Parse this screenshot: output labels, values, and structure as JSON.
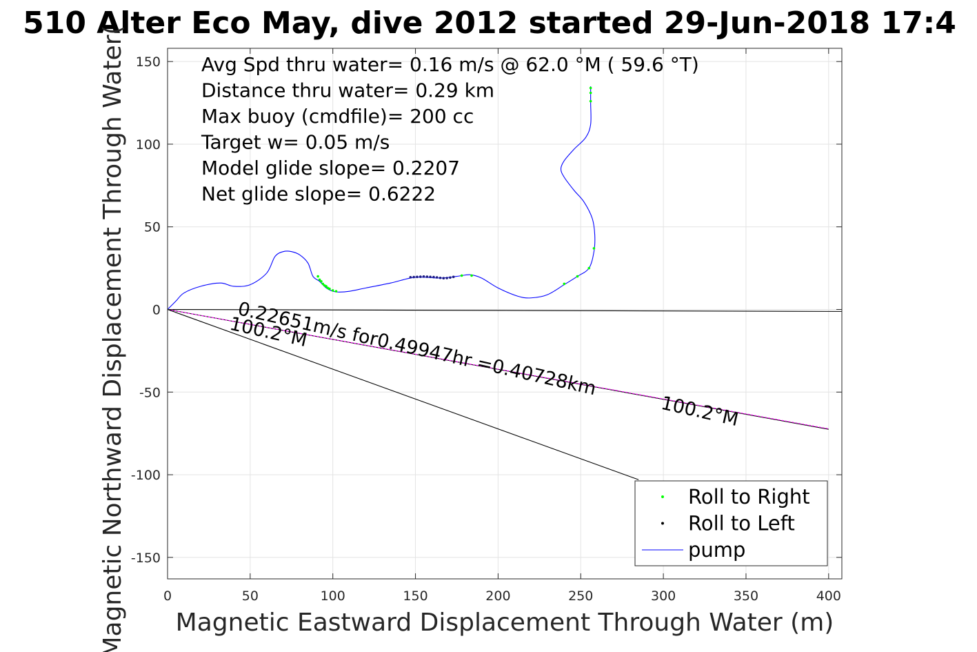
{
  "chart_data": {
    "type": "scatter",
    "title": "510 Alter Eco May, dive 2012 started 29-Jun-2018 17:4",
    "xlabel": "Magnetic Eastward Displacement Through Water (m)",
    "ylabel": "Magnetic Northward Displacement Through Water(",
    "xlim": [
      0,
      408
    ],
    "ylim": [
      -163,
      158
    ],
    "x_ticks": [
      0,
      50,
      100,
      150,
      200,
      250,
      300,
      350,
      400
    ],
    "y_ticks": [
      150,
      100,
      50,
      0,
      -50,
      -100,
      -150
    ],
    "grid": true,
    "legend": {
      "position": "bottom-right",
      "entries": [
        {
          "label": "Roll to Right",
          "color": "#00ff00",
          "marker": "dot"
        },
        {
          "label": "Roll to Left",
          "color": "#000000",
          "marker": "dot"
        },
        {
          "label": "pump",
          "color": "#0000ff",
          "marker": "line"
        }
      ]
    },
    "text_notes": [
      "Avg Spd thru water=  0.16 m/s @  62.0 °M ( 59.6 °T)",
      "Distance thru water=  0.29 km",
      "Max buoy (cmdfile)= 200 cc",
      "Target w= 0.05 m/s",
      "Model glide slope= 0.2207",
      "Net glide slope= 0.6222"
    ],
    "annotations": [
      {
        "text": "0.22651m/s for0.49947hr =0.40728km",
        "x": 42,
        "y": -3,
        "rotate": 12.7
      },
      {
        "text": "100.2°M",
        "x": 37,
        "y": -12,
        "rotate": 12.7
      },
      {
        "text": "100.2°M",
        "x": 298,
        "y": -60,
        "rotate": 12.7
      }
    ],
    "series": [
      {
        "name": "track",
        "color": "#0000ff",
        "style": "line",
        "x": [
          0,
          5,
          10,
          20,
          32,
          40,
          50,
          60,
          65,
          70,
          75,
          80,
          85,
          88,
          92,
          96,
          100,
          104,
          110,
          120,
          135,
          150,
          165,
          175,
          183,
          190,
          200,
          212,
          220,
          230,
          240,
          248,
          255,
          258,
          258.5,
          257,
          252,
          246,
          240,
          238,
          240,
          246,
          253,
          256,
          256,
          256
        ],
        "y": [
          0,
          5,
          10,
          14,
          16,
          14,
          15,
          22,
          32,
          35,
          35,
          33,
          28,
          20,
          17,
          13,
          11,
          10.5,
          11,
          13,
          16,
          19.5,
          19,
          20,
          21,
          19,
          13,
          8,
          7,
          9,
          15,
          20,
          25,
          35,
          45,
          55,
          65,
          72,
          80,
          85,
          90,
          97,
          104,
          112,
          125,
          135
        ]
      },
      {
        "name": "Roll to Right",
        "color": "#00ff00",
        "style": "dots",
        "x": [
          91,
          92,
          93,
          94,
          95,
          96,
          97,
          98,
          100,
          102,
          178,
          184,
          240,
          248,
          255,
          258,
          256,
          256,
          256
        ],
        "y": [
          20,
          18,
          17,
          15.5,
          14.5,
          14,
          13,
          12.5,
          11.5,
          11,
          20.5,
          20.5,
          15.5,
          20,
          25,
          37,
          126,
          131,
          134
        ]
      },
      {
        "name": "Roll to Left",
        "color": "#1a1a80",
        "style": "dots",
        "x": [
          147,
          149,
          151,
          153,
          155,
          157,
          159,
          161,
          163,
          165,
          167,
          169,
          171,
          173
        ],
        "y": [
          19.5,
          19.6,
          19.7,
          19.8,
          19.9,
          19.8,
          19.7,
          19.6,
          19.4,
          19.1,
          18.9,
          19.0,
          19.3,
          19.7
        ]
      },
      {
        "name": "reference-line-horizontal",
        "color": "#000000",
        "style": "line",
        "x": [
          0,
          408
        ],
        "y": [
          0,
          -1.2
        ]
      },
      {
        "name": "reference-line-bearing",
        "color": "#000000",
        "style": "line",
        "x": [
          0,
          400
        ],
        "y": [
          0,
          -72.5
        ]
      },
      {
        "name": "reference-line-bearing-magenta",
        "color": "#ff00ff",
        "style": "dashed",
        "x": [
          0,
          400
        ],
        "y": [
          0,
          -72.2
        ]
      },
      {
        "name": "reference-line-steep",
        "color": "#000000",
        "style": "line",
        "x": [
          0,
          285
        ],
        "y": [
          0,
          -103
        ]
      }
    ]
  }
}
